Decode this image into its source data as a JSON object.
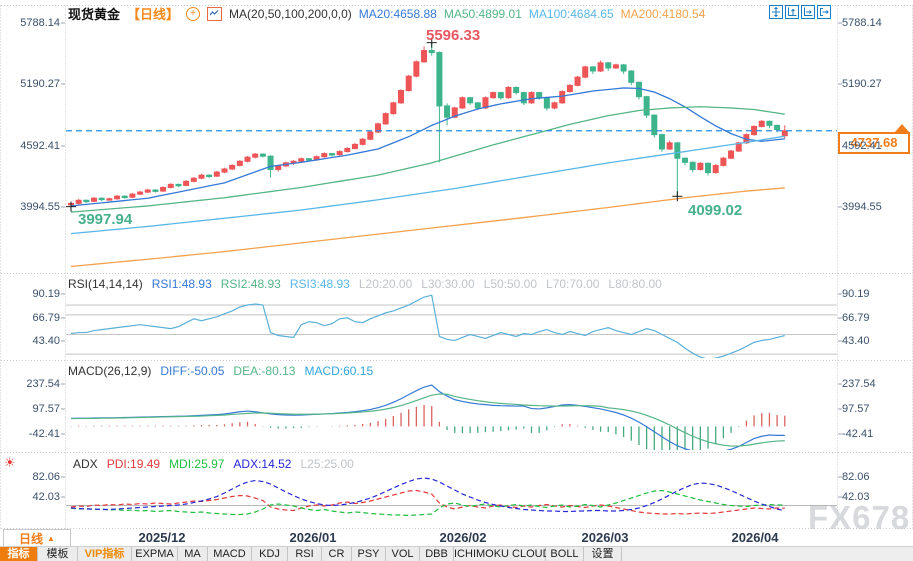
{
  "header": {
    "title": "现货黄金",
    "period": "【日线】",
    "ma_label": "MA(20,50,100,200,0,0)",
    "ma20": "MA20:4658.88",
    "ma50": "MA50:4899.01",
    "ma100": "MA100:4684.65",
    "ma200": "MA200:4180.54",
    "toolbar_icons": [
      "move-pan-icon",
      "fit-y-axis-icon",
      "fit-x-axis-icon",
      "go-to-latest-icon"
    ]
  },
  "axes": {
    "main": [
      "5788.14",
      "5190.27",
      "4592.41",
      "3994.55"
    ],
    "rsi": [
      "90.19",
      "66.79",
      "43.40"
    ],
    "macd": [
      "237.54",
      "97.57",
      "-42.41"
    ],
    "adx": [
      "82.06",
      "42.03"
    ]
  },
  "panel_headers": {
    "rsi": {
      "name": "RSI(14,14,14)",
      "rsi1": "RSI1:48.93",
      "rsi2": "RSI2:48.93",
      "rsi3": "RSI3:48.93",
      "l20": "L20:20.00",
      "l30": "L30:30.00",
      "l50": "L50:50.00",
      "l70": "L70:70.00",
      "l80": "L80:80.00"
    },
    "macd": {
      "name": "MACD(26,12,9)",
      "diff": "DIFF:-50.05",
      "dea": "DEA:-80.13",
      "macd": "MACD:60.15"
    },
    "adx": {
      "name": "ADX",
      "pdi": "PDI:19.49",
      "mdi": "MDI:25.97",
      "adx": "ADX:14.52",
      "l25": "L25:25.00"
    }
  },
  "annotations": {
    "high": "5596.33",
    "start_low": "3997.94",
    "march_low": "4099.02",
    "current_price": "4737.68"
  },
  "x_axis": {
    "period": "日线",
    "months": [
      "2025/12",
      "2026/01",
      "2026/02",
      "2026/03",
      "2026/04"
    ]
  },
  "tabs": [
    {
      "label": "指标",
      "style": "active"
    },
    {
      "label": "模板",
      "style": "normal"
    },
    {
      "label": "VIP指标",
      "style": "vip"
    },
    {
      "label": "EXPMA",
      "style": "normal"
    },
    {
      "label": "MA",
      "style": "normal"
    },
    {
      "label": "MACD",
      "style": "normal"
    },
    {
      "label": "KDJ",
      "style": "normal"
    },
    {
      "label": "RSI",
      "style": "normal"
    },
    {
      "label": "CR",
      "style": "normal"
    },
    {
      "label": "PSY",
      "style": "normal"
    },
    {
      "label": "VOL",
      "style": "normal"
    },
    {
      "label": "DBB",
      "style": "normal"
    },
    {
      "label": "ICHIMOKU CLOUD",
      "style": "normal"
    },
    {
      "label": "BOLL",
      "style": "normal"
    },
    {
      "label": "设置",
      "style": "normal"
    }
  ],
  "watermark": "FX678",
  "colors": {
    "up": "#ee5557",
    "down": "#3db48b",
    "ma20": "#3579d6",
    "ma50": "#54b586",
    "ma100": "#59b7e8",
    "ma200": "#f2a24e",
    "rsi_line": "#5ab0d8",
    "diff": "#3579d6",
    "dea": "#54b586",
    "hist_up": "#d9635f",
    "hist_down": "#44a97e",
    "pdi": "#e03b3b",
    "mdi": "#1fbf3f",
    "adx": "#2727d8",
    "price_line": "#2a8fe0",
    "accent": "#f07d1a",
    "grid": "#c9c9c9",
    "level_line": "#c4c4c4"
  },
  "chart_data": {
    "type": "candlestick",
    "title": "现货黄金 日线",
    "x_tick_labels": [
      "2025/12",
      "2026/01",
      "2026/02",
      "2026/03",
      "2026/04"
    ],
    "main_ylim": [
      3380,
      5935
    ],
    "rsi_ylim": [
      20,
      105
    ],
    "macd_ylim": [
      -132,
      250
    ],
    "adx_ylim": [
      -8,
      128
    ],
    "current_price": 4737.68,
    "high_marker": 5596.33,
    "low_marker_start": 3997.94,
    "low_marker_march": 4099.02,
    "candles": [
      [
        4020,
        4045,
        3997.94,
        4030
      ],
      [
        4030,
        4072,
        4012,
        4060
      ],
      [
        4060,
        4068,
        4035,
        4050
      ],
      [
        4050,
        4092,
        4040,
        4080
      ],
      [
        4080,
        4088,
        4052,
        4070
      ],
      [
        4070,
        4085,
        4058,
        4075
      ],
      [
        4075,
        4112,
        4065,
        4100
      ],
      [
        4100,
        4108,
        4075,
        4090
      ],
      [
        4090,
        4132,
        4082,
        4120
      ],
      [
        4120,
        4152,
        4110,
        4140
      ],
      [
        4140,
        4172,
        4130,
        4160
      ],
      [
        4160,
        4168,
        4135,
        4150
      ],
      [
        4150,
        4196,
        4142,
        4185
      ],
      [
        4185,
        4227,
        4175,
        4215
      ],
      [
        4215,
        4222,
        4188,
        4205
      ],
      [
        4205,
        4257,
        4198,
        4245
      ],
      [
        4245,
        4287,
        4235,
        4275
      ],
      [
        4275,
        4317,
        4265,
        4305
      ],
      [
        4305,
        4312,
        4278,
        4295
      ],
      [
        4295,
        4347,
        4288,
        4335
      ],
      [
        4335,
        4377,
        4325,
        4365
      ],
      [
        4365,
        4412,
        4355,
        4400
      ],
      [
        4400,
        4452,
        4390,
        4440
      ],
      [
        4440,
        4492,
        4430,
        4480
      ],
      [
        4480,
        4522,
        4468,
        4510
      ],
      [
        4510,
        4518,
        4478,
        4490
      ],
      [
        4490,
        4498,
        4280,
        4360
      ],
      [
        4360,
        4407,
        4340,
        4395
      ],
      [
        4395,
        4437,
        4382,
        4425
      ],
      [
        4425,
        4452,
        4405,
        4440
      ],
      [
        4440,
        4477,
        4428,
        4465
      ],
      [
        4465,
        4472,
        4440,
        4455
      ],
      [
        4455,
        4497,
        4445,
        4485
      ],
      [
        4485,
        4527,
        4475,
        4515
      ],
      [
        4515,
        4522,
        4488,
        4505
      ],
      [
        4505,
        4547,
        4495,
        4535
      ],
      [
        4535,
        4577,
        4525,
        4565
      ],
      [
        4565,
        4617,
        4555,
        4605
      ],
      [
        4605,
        4667,
        4595,
        4655
      ],
      [
        4655,
        4737,
        4645,
        4725
      ],
      [
        4725,
        4817,
        4715,
        4805
      ],
      [
        4805,
        4917,
        4795,
        4905
      ],
      [
        4905,
        5022,
        4895,
        5010
      ],
      [
        5010,
        5142,
        5000,
        5130
      ],
      [
        5130,
        5282,
        5120,
        5270
      ],
      [
        5270,
        5422,
        5258,
        5410
      ],
      [
        5410,
        5560,
        5400,
        5520
      ],
      [
        5520,
        5596.33,
        5470,
        5500
      ],
      [
        5500,
        5510,
        4430,
        4980
      ],
      [
        4980,
        5005,
        4790,
        4870
      ],
      [
        4870,
        4972,
        4860,
        4960
      ],
      [
        4960,
        5072,
        4950,
        5060
      ],
      [
        5060,
        5068,
        4990,
        5010
      ],
      [
        5010,
        5018,
        4938,
        4960
      ],
      [
        4960,
        5072,
        4950,
        5060
      ],
      [
        5060,
        5122,
        5050,
        5110
      ],
      [
        5110,
        5118,
        5040,
        5060
      ],
      [
        5060,
        5172,
        5050,
        5160
      ],
      [
        5160,
        5168,
        5090,
        5110
      ],
      [
        5110,
        5118,
        4988,
        5010
      ],
      [
        5010,
        5122,
        5000,
        5110
      ],
      [
        5110,
        5118,
        5040,
        5060
      ],
      [
        5060,
        5068,
        4938,
        4960
      ],
      [
        4960,
        5022,
        4948,
        5010
      ],
      [
        5010,
        5132,
        5000,
        5120
      ],
      [
        5120,
        5192,
        5110,
        5180
      ],
      [
        5180,
        5272,
        5170,
        5260
      ],
      [
        5260,
        5372,
        5250,
        5360
      ],
      [
        5360,
        5368,
        5292,
        5320
      ],
      [
        5320,
        5422,
        5310,
        5400
      ],
      [
        5400,
        5408,
        5322,
        5350
      ],
      [
        5350,
        5392,
        5340,
        5380
      ],
      [
        5380,
        5388,
        5292,
        5320
      ],
      [
        5320,
        5328,
        5182,
        5210
      ],
      [
        5210,
        5218,
        5042,
        5070
      ],
      [
        5070,
        5078,
        4862,
        4890
      ],
      [
        4890,
        4898,
        4672,
        4700
      ],
      [
        4700,
        4708,
        4532,
        4560
      ],
      [
        4560,
        4642,
        4550,
        4620
      ],
      [
        4620,
        4628,
        4099.02,
        4470
      ],
      [
        4470,
        4478,
        4402,
        4430
      ],
      [
        4430,
        4438,
        4332,
        4360
      ],
      [
        4360,
        4432,
        4350,
        4420
      ],
      [
        4420,
        4428,
        4302,
        4330
      ],
      [
        4330,
        4412,
        4320,
        4400
      ],
      [
        4400,
        4482,
        4390,
        4470
      ],
      [
        4470,
        4552,
        4460,
        4540
      ],
      [
        4540,
        4632,
        4530,
        4620
      ],
      [
        4620,
        4712,
        4610,
        4700
      ],
      [
        4700,
        4792,
        4690,
        4780
      ],
      [
        4780,
        4842,
        4770,
        4830
      ],
      [
        4830,
        4838,
        4762,
        4790
      ],
      [
        4790,
        4798,
        4722,
        4750
      ],
      [
        4690,
        4792,
        4662,
        4737.68
      ]
    ],
    "ma20_keypoints": [
      [
        0,
        4005
      ],
      [
        10,
        4080
      ],
      [
        20,
        4230
      ],
      [
        26,
        4390
      ],
      [
        30,
        4430
      ],
      [
        36,
        4500
      ],
      [
        40,
        4560
      ],
      [
        44,
        4680
      ],
      [
        47,
        4790
      ],
      [
        50,
        4880
      ],
      [
        53,
        4950
      ],
      [
        56,
        5000
      ],
      [
        60,
        5050
      ],
      [
        64,
        5075
      ],
      [
        68,
        5125
      ],
      [
        72,
        5155
      ],
      [
        74,
        5150
      ],
      [
        76,
        5115
      ],
      [
        78,
        5050
      ],
      [
        80,
        4970
      ],
      [
        82,
        4875
      ],
      [
        84,
        4785
      ],
      [
        86,
        4710
      ],
      [
        88,
        4655
      ],
      [
        90,
        4635
      ],
      [
        93,
        4658.88
      ]
    ],
    "ma50_keypoints": [
      [
        0,
        3945
      ],
      [
        10,
        4005
      ],
      [
        20,
        4085
      ],
      [
        30,
        4185
      ],
      [
        40,
        4305
      ],
      [
        47,
        4425
      ],
      [
        50,
        4490
      ],
      [
        55,
        4600
      ],
      [
        60,
        4700
      ],
      [
        65,
        4800
      ],
      [
        70,
        4885
      ],
      [
        74,
        4935
      ],
      [
        78,
        4960
      ],
      [
        82,
        4972
      ],
      [
        86,
        4960
      ],
      [
        89,
        4945
      ],
      [
        93,
        4899.01
      ]
    ],
    "ma100_keypoints": [
      [
        0,
        3735
      ],
      [
        10,
        3805
      ],
      [
        20,
        3885
      ],
      [
        30,
        3965
      ],
      [
        40,
        4065
      ],
      [
        50,
        4175
      ],
      [
        60,
        4300
      ],
      [
        70,
        4425
      ],
      [
        80,
        4535
      ],
      [
        88,
        4625
      ],
      [
        93,
        4684.65
      ]
    ],
    "ma200_keypoints": [
      [
        0,
        3415
      ],
      [
        10,
        3485
      ],
      [
        20,
        3560
      ],
      [
        30,
        3645
      ],
      [
        40,
        3730
      ],
      [
        50,
        3815
      ],
      [
        60,
        3900
      ],
      [
        70,
        3990
      ],
      [
        80,
        4085
      ],
      [
        88,
        4150
      ],
      [
        93,
        4180.54
      ]
    ],
    "rsi_levels": [
      80,
      70,
      50,
      30
    ],
    "rsi": [
      51,
      52,
      52,
      54,
      55,
      56,
      57,
      58,
      59,
      60,
      59,
      58,
      57,
      56,
      58,
      62,
      66,
      64,
      66,
      68,
      71,
      74,
      78,
      80,
      81,
      80,
      52,
      49,
      48,
      47,
      60,
      63,
      62,
      59,
      61,
      66,
      67,
      63,
      62,
      66,
      69,
      72,
      74,
      77,
      80,
      84,
      88,
      90,
      48,
      45,
      44,
      47,
      50,
      48,
      46,
      49,
      52,
      50,
      48,
      51,
      50,
      53,
      55,
      52,
      50,
      53,
      51,
      49,
      53,
      55,
      57,
      54,
      52,
      50,
      53,
      56,
      54,
      50,
      46,
      42,
      36,
      31,
      27,
      25,
      26,
      28,
      31,
      34,
      38,
      42,
      44,
      45,
      47,
      48.93
    ],
    "macd_diff": [
      45,
      46,
      46,
      47,
      48,
      48,
      49,
      50,
      51,
      52,
      53,
      54,
      55,
      56,
      57,
      58,
      60,
      62,
      64,
      66,
      70,
      76,
      82,
      86,
      82,
      76,
      70,
      66,
      64,
      63,
      64,
      66,
      68,
      70,
      72,
      75,
      78,
      82,
      88,
      95,
      105,
      118,
      135,
      155,
      178,
      200,
      220,
      232,
      195,
      170,
      150,
      140,
      132,
      126,
      122,
      118,
      116,
      115,
      114,
      114,
      100,
      98,
      104,
      112,
      120,
      122,
      118,
      112,
      105,
      98,
      88,
      78,
      64,
      46,
      24,
      -2,
      -30,
      -58,
      -85,
      -108,
      -125,
      -138,
      -145,
      -148,
      -145,
      -138,
      -128,
      -112,
      -90,
      -68,
      -55,
      -48,
      -50,
      -50.05
    ],
    "macd_dea": [
      44,
      44,
      45,
      45,
      46,
      46,
      47,
      48,
      49,
      50,
      51,
      52,
      53,
      54,
      55,
      56,
      57,
      58,
      60,
      62,
      64,
      67,
      70,
      73,
      75,
      75,
      74,
      72,
      70,
      68,
      68,
      68,
      69,
      70,
      71,
      73,
      75,
      78,
      81,
      85,
      90,
      97,
      106,
      117,
      130,
      145,
      160,
      175,
      182,
      180,
      168,
      159,
      151,
      144,
      138,
      133,
      129,
      126,
      123,
      120,
      118,
      116,
      115,
      114,
      114,
      115,
      116,
      116,
      115,
      113,
      104,
      100,
      94,
      86,
      76,
      62,
      46,
      28,
      8,
      -14,
      -35,
      -55,
      -72,
      -86,
      -97,
      -105,
      -110,
      -110,
      -106,
      -99,
      -92,
      -86,
      -82,
      -80.13
    ],
    "adx_level": 25,
    "adx_pdi": [
      22,
      24,
      23,
      26,
      25,
      27,
      26,
      28,
      27,
      29,
      28,
      30,
      29,
      28,
      30,
      32,
      34,
      33,
      35,
      37,
      40,
      43,
      45,
      44,
      40,
      35,
      22,
      18,
      16,
      15,
      20,
      24,
      26,
      24,
      26,
      30,
      32,
      29,
      31,
      34,
      38,
      42,
      46,
      50,
      54,
      55,
      52,
      48,
      30,
      22,
      18,
      22,
      25,
      22,
      20,
      24,
      26,
      23,
      21,
      24,
      22,
      25,
      27,
      24,
      22,
      25,
      23,
      21,
      24,
      26,
      24,
      21,
      18,
      15,
      12,
      10,
      9,
      8,
      8,
      9,
      8,
      9,
      10,
      9,
      10,
      12,
      14,
      16,
      18,
      20,
      19,
      18,
      20,
      19.49
    ],
    "adx_mdi": [
      20,
      18,
      19,
      17,
      18,
      16,
      17,
      15,
      16,
      14,
      15,
      13,
      14,
      15,
      13,
      12,
      11,
      12,
      10,
      9,
      8,
      7,
      7,
      8,
      12,
      18,
      26,
      28,
      26,
      24,
      20,
      17,
      15,
      17,
      14,
      12,
      10,
      12,
      11,
      9,
      8,
      7,
      6,
      6,
      5,
      6,
      7,
      8,
      20,
      28,
      30,
      26,
      23,
      26,
      28,
      24,
      22,
      25,
      27,
      24,
      26,
      23,
      21,
      24,
      26,
      22,
      24,
      27,
      25,
      22,
      26,
      30,
      35,
      40,
      45,
      50,
      54,
      55,
      52,
      48,
      44,
      40,
      36,
      33,
      30,
      27,
      25,
      24,
      23,
      25,
      26,
      27,
      26,
      25.97
    ],
    "adx_adx": [
      20,
      19,
      18,
      18,
      17,
      17,
      18,
      19,
      20,
      21,
      22,
      23,
      24,
      25,
      26,
      28,
      31,
      34,
      38,
      43,
      50,
      58,
      66,
      72,
      75,
      73,
      68,
      60,
      52,
      45,
      38,
      33,
      29,
      26,
      25,
      26,
      28,
      31,
      35,
      40,
      46,
      53,
      60,
      67,
      73,
      78,
      80,
      78,
      72,
      64,
      56,
      48,
      42,
      36,
      31,
      27,
      24,
      21,
      19,
      17,
      16,
      15,
      14,
      14,
      13,
      13,
      14,
      14,
      15,
      15,
      14,
      14,
      15,
      17,
      20,
      25,
      31,
      38,
      46,
      54,
      61,
      67,
      70,
      69,
      66,
      61,
      55,
      48,
      41,
      34,
      28,
      23,
      18,
      14.52
    ]
  }
}
